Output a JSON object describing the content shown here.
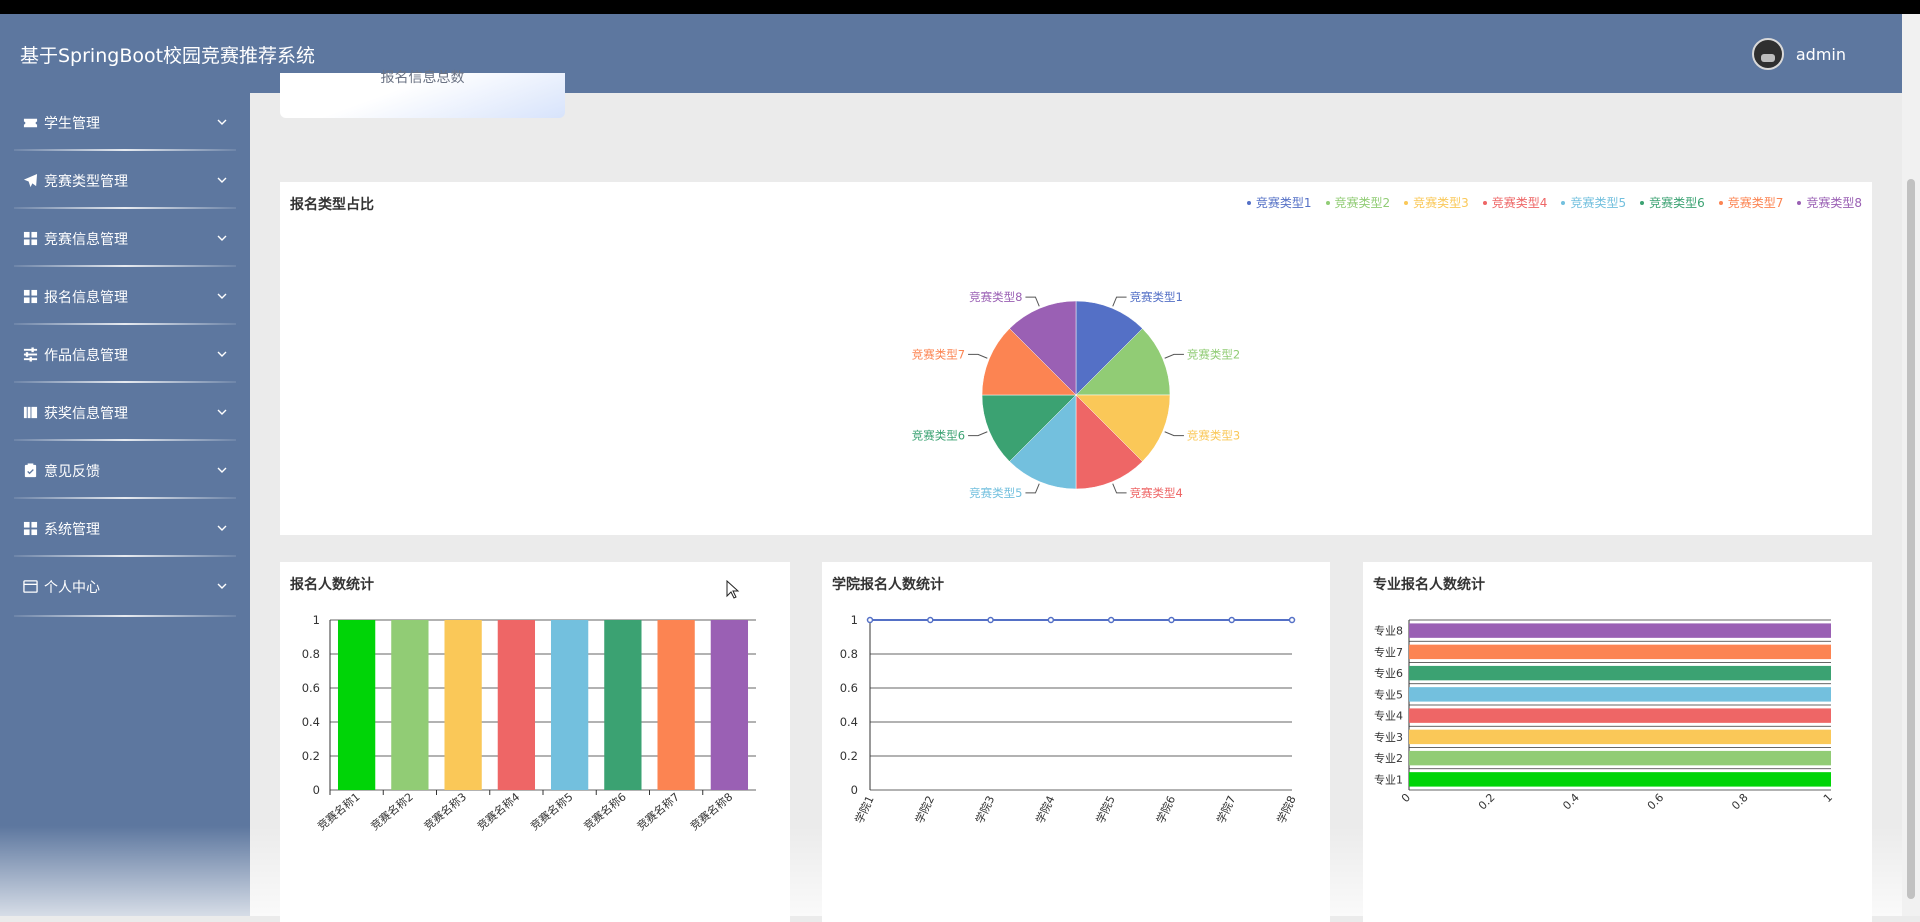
{
  "header": {
    "title": "基于SpringBoot校园竞赛推荐系统",
    "user": "admin"
  },
  "sidebar": {
    "items": [
      {
        "label": "学生管理",
        "icon": "ticket-icon"
      },
      {
        "label": "竞赛类型管理",
        "icon": "paper-plane-icon"
      },
      {
        "label": "竞赛信息管理",
        "icon": "grid-icon"
      },
      {
        "label": "报名信息管理",
        "icon": "grid-icon"
      },
      {
        "label": "作品信息管理",
        "icon": "sliders-icon"
      },
      {
        "label": "获奖信息管理",
        "icon": "books-icon"
      },
      {
        "label": "意见反馈",
        "icon": "clipboard-icon"
      },
      {
        "label": "系统管理",
        "icon": "grid-icon"
      },
      {
        "label": "个人中心",
        "icon": "card-icon"
      }
    ]
  },
  "stat_card": {
    "label": "报名信息总数"
  },
  "colors": {
    "header_bg": "#5d779f",
    "palette": [
      "#5470c6",
      "#91cc75",
      "#fac858",
      "#ee6666",
      "#73c0de",
      "#3ba272",
      "#fc8452",
      "#9a60b4"
    ],
    "bar_first": "#00d407"
  },
  "panels": {
    "pie": "报名类型占比",
    "bar": "报名人数统计",
    "line": "学院报名人数统计",
    "hbar": "专业报名人数统计"
  },
  "chart_data": [
    {
      "type": "pie",
      "title": "报名类型占比",
      "categories": [
        "竞赛类型1",
        "竞赛类型2",
        "竞赛类型3",
        "竞赛类型4",
        "竞赛类型5",
        "竞赛类型6",
        "竞赛类型7",
        "竞赛类型8"
      ],
      "values": [
        1,
        1,
        1,
        1,
        1,
        1,
        1,
        1
      ],
      "legend": "top-right"
    },
    {
      "type": "bar",
      "title": "报名人数统计",
      "categories": [
        "竞赛名称1",
        "竞赛名称2",
        "竞赛名称3",
        "竞赛名称4",
        "竞赛名称5",
        "竞赛名称6",
        "竞赛名称7",
        "竞赛名称8"
      ],
      "values": [
        1,
        1,
        1,
        1,
        1,
        1,
        1,
        1
      ],
      "ylim": [
        0,
        1
      ],
      "yticks": [
        "0",
        "0.2",
        "0.4",
        "0.6",
        "0.8",
        "1"
      ],
      "grid": true
    },
    {
      "type": "line",
      "title": "学院报名人数统计",
      "categories": [
        "学院1",
        "学院2",
        "学院3",
        "学院4",
        "学院5",
        "学院6",
        "学院7",
        "学院8"
      ],
      "values": [
        1,
        1,
        1,
        1,
        1,
        1,
        1,
        1
      ],
      "ylim": [
        0,
        1
      ],
      "yticks": [
        "0",
        "0.2",
        "0.4",
        "0.6",
        "0.8",
        "1"
      ],
      "grid": true
    },
    {
      "type": "bar",
      "orientation": "horizontal",
      "title": "专业报名人数统计",
      "categories": [
        "专业1",
        "专业2",
        "专业3",
        "专业4",
        "专业5",
        "专业6",
        "专业7",
        "专业8"
      ],
      "values": [
        1,
        1,
        1,
        1,
        1,
        1,
        1,
        1
      ],
      "xlim": [
        0,
        1
      ],
      "xticks": [
        "0",
        "0.2",
        "0.4",
        "0.6",
        "0.8",
        "1"
      ],
      "grid": true
    }
  ]
}
